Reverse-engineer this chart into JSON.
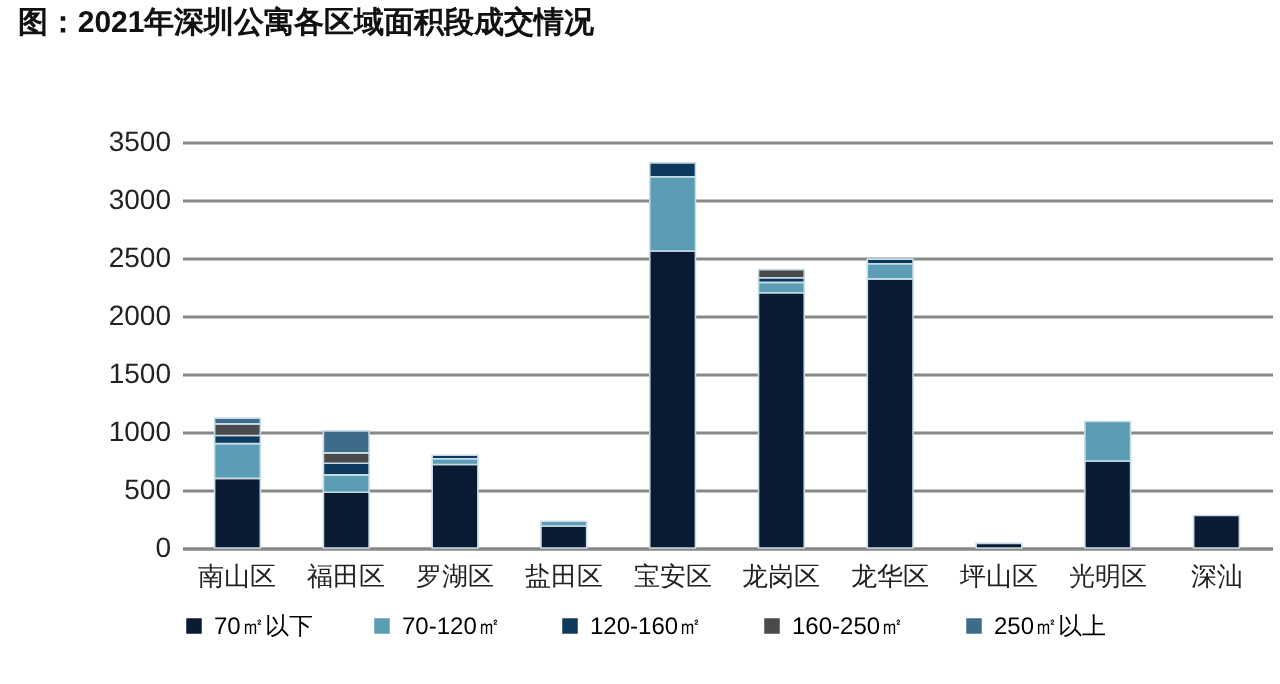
{
  "chart_data": {
    "type": "bar",
    "title": "图：2021年深圳公寓各区域面积段成交情况",
    "stacked": true,
    "categories": [
      "南山区",
      "福田区",
      "罗湖区",
      "盐田区",
      "宝安区",
      "龙岗区",
      "龙华区",
      "坪山区",
      "光明区",
      "深汕"
    ],
    "series": [
      {
        "name": "70㎡以下",
        "color": "#0b1a33",
        "values": [
          600,
          480,
          720,
          190,
          2560,
          2200,
          2320,
          40,
          750,
          280
        ]
      },
      {
        "name": "70-120㎡",
        "color": "#5b9db5",
        "values": [
          300,
          150,
          50,
          40,
          640,
          90,
          130,
          null,
          340,
          null
        ]
      },
      {
        "name": "120-160㎡",
        "color": "#0d3a5c",
        "values": [
          70,
          100,
          30,
          null,
          120,
          40,
          40,
          null,
          null,
          null
        ]
      },
      {
        "name": "160-250㎡",
        "color": "#4a4a4a",
        "values": [
          100,
          90,
          null,
          null,
          null,
          70,
          null,
          null,
          null,
          null
        ]
      },
      {
        "name": "250㎡以上",
        "color": "#3d6b8a",
        "values": [
          50,
          190,
          null,
          null,
          null,
          null,
          null,
          null,
          null,
          null
        ]
      }
    ],
    "ylim": [
      0,
      3500
    ],
    "yticks": [
      0,
      500,
      1000,
      1500,
      2000,
      2500,
      3000,
      3500
    ],
    "grid": "y",
    "legend": "bottom"
  }
}
